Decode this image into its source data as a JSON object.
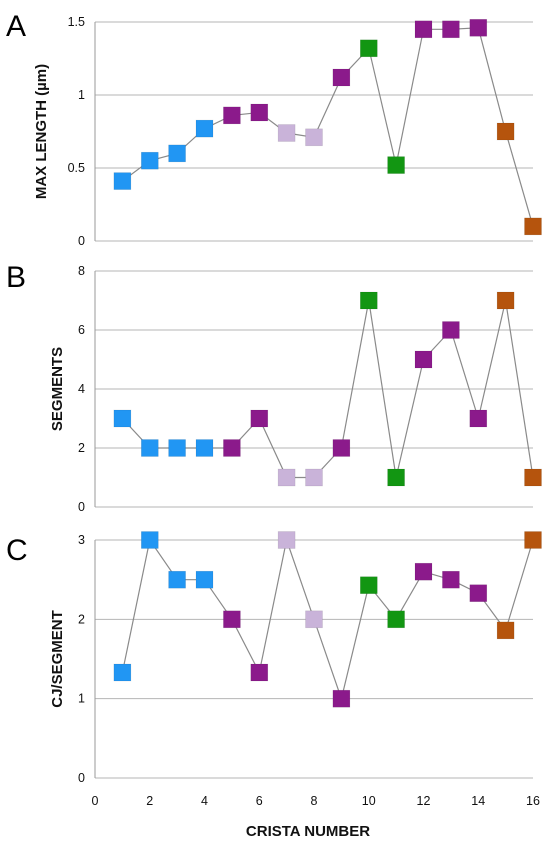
{
  "colors": {
    "blue": "#2196f3",
    "purple": "#8b1a8b",
    "lavender": "#c9b3d9",
    "green": "#129612",
    "brown": "#b5540d",
    "line": "#8a8a8a",
    "grid": "#b5b5b5"
  },
  "chart_data": [
    {
      "type": "line",
      "panel_label": "A",
      "ylabel": "MAX LENGTH (µm)",
      "xlabel": "",
      "ylim": [
        0,
        1.5
      ],
      "yticks": [
        "0",
        "0.5",
        "1",
        "1.5"
      ],
      "ytick_values": [
        0,
        0.5,
        1,
        1.5
      ],
      "xlim": [
        0,
        16
      ],
      "grid": true,
      "x": [
        1,
        2,
        3,
        4,
        5,
        6,
        7,
        8,
        9,
        10,
        11,
        12,
        13,
        14,
        15,
        16
      ],
      "y": [
        0.41,
        0.55,
        0.6,
        0.77,
        0.86,
        0.88,
        0.74,
        0.71,
        1.12,
        1.32,
        0.52,
        1.45,
        1.45,
        1.46,
        0.75,
        0.1
      ],
      "point_colors": [
        "blue",
        "blue",
        "blue",
        "blue",
        "purple",
        "purple",
        "lavender",
        "lavender",
        "purple",
        "green",
        "green",
        "purple",
        "purple",
        "purple",
        "brown",
        "brown"
      ]
    },
    {
      "type": "line",
      "panel_label": "B",
      "ylabel": "SEGMENTS",
      "xlabel": "",
      "ylim": [
        0,
        8
      ],
      "yticks": [
        "0",
        "2",
        "4",
        "6",
        "8"
      ],
      "ytick_values": [
        0,
        2,
        4,
        6,
        8
      ],
      "xlim": [
        0,
        16
      ],
      "grid": true,
      "x": [
        1,
        2,
        3,
        4,
        5,
        6,
        7,
        8,
        9,
        10,
        11,
        12,
        13,
        14,
        15,
        16
      ],
      "y": [
        3,
        2,
        2,
        2,
        2,
        3,
        1,
        1,
        2,
        7,
        1,
        5,
        6,
        3,
        7,
        1
      ],
      "point_colors": [
        "blue",
        "blue",
        "blue",
        "blue",
        "purple",
        "purple",
        "lavender",
        "lavender",
        "purple",
        "green",
        "green",
        "purple",
        "purple",
        "purple",
        "brown",
        "brown"
      ]
    },
    {
      "type": "line",
      "panel_label": "C",
      "ylabel": "CJ/SEGMENT",
      "xlabel": "CRISTA NUMBER",
      "ylim": [
        0,
        3
      ],
      "yticks": [
        "0",
        "1",
        "2",
        "3"
      ],
      "ytick_values": [
        0,
        1,
        2,
        3
      ],
      "xlim": [
        0,
        16
      ],
      "xticks": [
        "0",
        "2",
        "4",
        "6",
        "8",
        "10",
        "12",
        "14",
        "16"
      ],
      "xtick_values": [
        0,
        2,
        4,
        6,
        8,
        10,
        12,
        14,
        16
      ],
      "grid": true,
      "x": [
        1,
        2,
        3,
        4,
        5,
        6,
        7,
        8,
        9,
        10,
        11,
        12,
        13,
        14,
        15,
        16
      ],
      "y": [
        1.33,
        3.0,
        2.5,
        2.5,
        2.0,
        1.33,
        3.0,
        2.0,
        1.0,
        2.43,
        2.0,
        2.6,
        2.5,
        2.33,
        1.86,
        3.0
      ],
      "point_colors": [
        "blue",
        "blue",
        "blue",
        "blue",
        "purple",
        "purple",
        "lavender",
        "lavender",
        "purple",
        "green",
        "green",
        "purple",
        "purple",
        "purple",
        "brown",
        "brown"
      ]
    }
  ]
}
